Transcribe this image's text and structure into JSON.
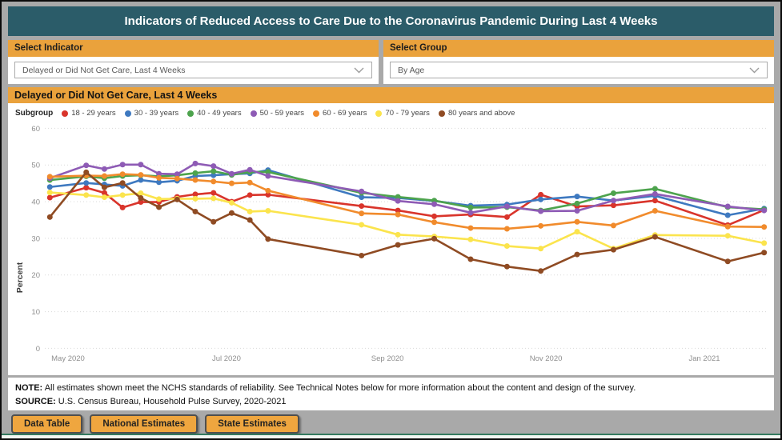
{
  "page": {
    "title": "Indicators of Reduced Access to Care Due to the Coronavirus Pandemic During Last 4 Weeks"
  },
  "filters": {
    "indicator": {
      "label": "Select Indicator",
      "value": "Delayed or Did Not Get Care, Last 4 Weeks"
    },
    "group": {
      "label": "Select Group",
      "value": "By Age"
    }
  },
  "section": {
    "title": "Delayed or Did Not Get Care, Last 4 Weeks"
  },
  "legend": {
    "label": "Subgroup"
  },
  "note": {
    "label": "NOTE:",
    "text": "All estimates shown meet the NCHS standards of reliability. See Technical Notes below for more information about the content and design of the survey."
  },
  "source": {
    "label": "SOURCE:",
    "text": "U.S. Census Bureau, Household Pulse Survey, 2020-2021"
  },
  "buttons": [
    {
      "label": "Data Table"
    },
    {
      "label": "National Estimates"
    },
    {
      "label": "State Estimates"
    }
  ],
  "chart_data": {
    "type": "line",
    "title": "Delayed or Did Not Get Care, Last 4 Weeks",
    "xlabel": "",
    "ylabel": "Percent",
    "ylim": [
      0,
      60
    ],
    "yticks": [
      0,
      10,
      20,
      30,
      40,
      50,
      60
    ],
    "grid": "dotted-horizontal",
    "legend_position": "top-left",
    "xticks": [
      {
        "date": "2020-05-01",
        "label": "May 2020"
      },
      {
        "date": "2020-07-01",
        "label": "Jul 2020"
      },
      {
        "date": "2020-09-01",
        "label": "Sep 2020"
      },
      {
        "date": "2020-11-01",
        "label": "Nov 2020"
      },
      {
        "date": "2021-01-01",
        "label": "Jan 2021"
      }
    ],
    "x_dates": [
      "2020-04-24",
      "2020-05-08",
      "2020-05-15",
      "2020-05-22",
      "2020-05-29",
      "2020-06-05",
      "2020-06-12",
      "2020-06-19",
      "2020-06-26",
      "2020-07-03",
      "2020-07-10",
      "2020-07-17",
      "2020-08-22",
      "2020-09-05",
      "2020-09-19",
      "2020-10-03",
      "2020-10-17",
      "2020-10-30",
      "2020-11-13",
      "2020-11-27",
      "2020-12-13",
      "2021-01-10",
      "2021-01-24"
    ],
    "series": [
      {
        "name": "18 - 29 years",
        "color": "#d9342b",
        "values": [
          41.1,
          43.8,
          42.4,
          38.4,
          39.9,
          39.9,
          41.3,
          42.0,
          42.4,
          40.0,
          41.8,
          41.9,
          38.8,
          37.6,
          36.0,
          36.5,
          35.8,
          41.9,
          38.7,
          39.0,
          40.3,
          33.6,
          37.7
        ]
      },
      {
        "name": "30 - 39 years",
        "color": "#3e79c0",
        "values": [
          44.0,
          45.1,
          44.7,
          44.3,
          45.9,
          45.3,
          45.7,
          47.0,
          47.2,
          47.5,
          47.7,
          48.6,
          41.2,
          41.0,
          40.2,
          38.9,
          39.2,
          40.6,
          41.4,
          40.3,
          41.6,
          36.3,
          38.1
        ]
      },
      {
        "name": "40 - 49 years",
        "color": "#4da34d",
        "values": [
          45.9,
          46.9,
          46.4,
          47.0,
          47.2,
          46.9,
          47.2,
          47.8,
          48.3,
          47.3,
          48.1,
          48.1,
          42.4,
          41.3,
          40.3,
          38.4,
          38.5,
          37.6,
          39.5,
          42.3,
          43.5,
          38.5,
          37.9
        ]
      },
      {
        "name": "50 - 59 years",
        "color": "#8e5bb5",
        "values": [
          46.4,
          49.9,
          48.9,
          50.1,
          50.1,
          47.6,
          47.5,
          50.4,
          49.7,
          47.6,
          48.7,
          47.0,
          42.8,
          40.2,
          39.3,
          37.0,
          38.7,
          37.4,
          37.5,
          40.3,
          42.1,
          38.7,
          37.6
        ]
      },
      {
        "name": "60 - 69 years",
        "color": "#f18b2c",
        "values": [
          46.8,
          47.1,
          47.0,
          47.5,
          47.3,
          46.5,
          46.3,
          45.9,
          45.5,
          45.0,
          45.2,
          43.0,
          36.8,
          36.5,
          34.4,
          32.8,
          32.6,
          33.4,
          34.5,
          33.5,
          37.5,
          33.2,
          33.1
        ]
      },
      {
        "name": "70 - 79 years",
        "color": "#fbe44d",
        "values": [
          42.5,
          41.8,
          41.2,
          41.8,
          42.3,
          40.7,
          40.8,
          40.8,
          40.9,
          39.7,
          37.3,
          37.5,
          33.7,
          31.0,
          30.5,
          29.7,
          27.9,
          27.2,
          31.8,
          27.2,
          30.9,
          30.7,
          28.7
        ]
      },
      {
        "name": "80 years and above",
        "color": "#8f4b23",
        "values": [
          35.8,
          48.0,
          43.9,
          45.1,
          41.0,
          38.5,
          40.6,
          37.3,
          34.5,
          36.9,
          35.0,
          29.8,
          25.3,
          28.2,
          29.9,
          24.3,
          22.3,
          21.1,
          25.6,
          26.9,
          30.4,
          23.7,
          26.1
        ]
      }
    ]
  }
}
